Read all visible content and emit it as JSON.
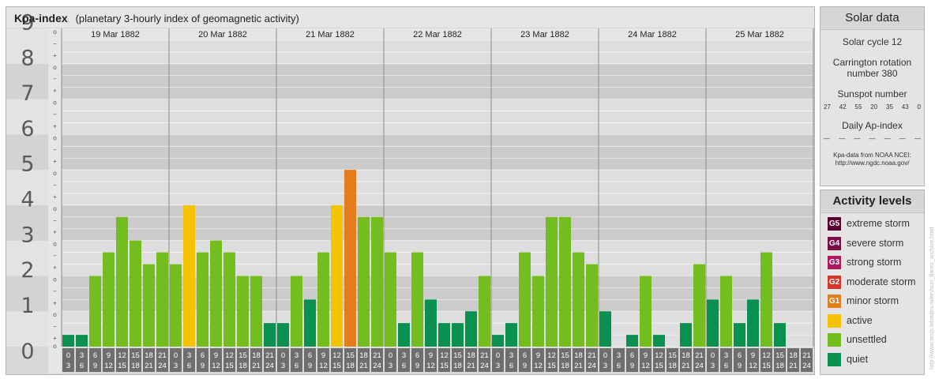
{
  "header": {
    "title": "Kpa-index",
    "subtitle": "(planetary 3-hourly index of geomagnetic activity)"
  },
  "chart_data": {
    "type": "bar",
    "ylim": [
      0,
      9
    ],
    "y_ticks": [
      "0",
      "1",
      "2",
      "3",
      "4",
      "5",
      "6",
      "7",
      "8",
      "9"
    ],
    "minor_ticks": [
      "+",
      "o",
      "−"
    ],
    "days": [
      "19 Mar 1882",
      "20 Mar 1882",
      "21 Mar 1882",
      "22 Mar 1882",
      "23 Mar 1882",
      "24 Mar 1882",
      "25 Mar 1882"
    ],
    "intervals_top": [
      "0",
      "3",
      "6",
      "9",
      "12",
      "15",
      "18",
      "21"
    ],
    "intervals_bottom": [
      "3",
      "6",
      "9",
      "12",
      "15",
      "18",
      "21",
      "24"
    ],
    "values": [
      0.333,
      0.333,
      2.0,
      2.667,
      3.667,
      3.0,
      2.333,
      2.667,
      2.333,
      4.0,
      2.667,
      3.0,
      2.667,
      2.0,
      2.0,
      0.667,
      0.667,
      2.0,
      1.333,
      2.667,
      4.0,
      5.0,
      3.667,
      3.667,
      2.667,
      0.667,
      2.667,
      1.333,
      0.667,
      0.667,
      1.0,
      2.0,
      0.333,
      0.667,
      2.667,
      2.0,
      3.667,
      3.667,
      2.667,
      2.333,
      1.0,
      0.0,
      0.333,
      2.0,
      0.333,
      0.0,
      0.667,
      2.333,
      1.333,
      2.0,
      0.667,
      1.333,
      2.667,
      0.667,
      0.0,
      0.0
    ],
    "colors": {
      "quiet": "#0a9150",
      "unsettled": "#73bd1e",
      "active": "#f5c400",
      "minor_storm": "#e37c1b"
    }
  },
  "solar": {
    "title": "Solar data",
    "cycle": "Solar cycle 12",
    "carrington_line1": "Carrington rotation",
    "carrington_line2": "number 380",
    "sunspot_label": "Sunspot number",
    "sunspot_values": [
      "27",
      "42",
      "55",
      "20",
      "35",
      "43",
      "0"
    ],
    "ap_label": "Daily Ap-index",
    "ap_values": [
      "—",
      "—",
      "—",
      "—",
      "—",
      "—",
      "—"
    ],
    "source_line1": "Kpa-data from NOAA NCEI:",
    "source_line2": "http://www.ngdc.noaa.gov/"
  },
  "levels": {
    "title": "Activity levels",
    "items": [
      {
        "code": "G5",
        "label": "extreme storm",
        "color": "#5c0030"
      },
      {
        "code": "G4",
        "label": "severe storm",
        "color": "#7a1048"
      },
      {
        "code": "G3",
        "label": "strong storm",
        "color": "#b0185e"
      },
      {
        "code": "G2",
        "label": "moderate storm",
        "color": "#d2372a"
      },
      {
        "code": "G1",
        "label": "minor storm",
        "color": "#e37c1b"
      },
      {
        "code": "",
        "label": "active",
        "color": "#f5c400"
      },
      {
        "code": "",
        "label": "unsettled",
        "color": "#73bd1e"
      },
      {
        "code": "",
        "label": "quiet",
        "color": "#0a9150"
      }
    ]
  },
  "watermark": "http://www.tesis.lebedev.ru/en/sun_flares_archive.html"
}
